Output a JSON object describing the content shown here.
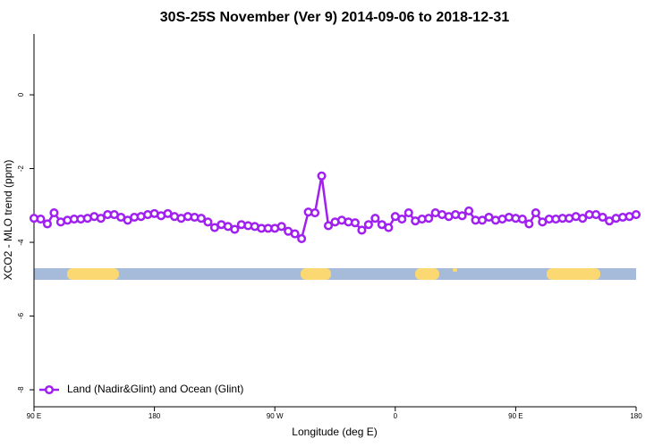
{
  "chart_data": {
    "type": "line",
    "title": "30S-25S November (Ver 9)   2014-09-06 to 2018-12-31",
    "x_label": "Longitude (deg E)",
    "y_label": "XCO2 - MLO trend (ppm)",
    "x": [
      90,
      95,
      100,
      105,
      110,
      115,
      120,
      125,
      130,
      135,
      140,
      145,
      150,
      155,
      160,
      165,
      170,
      175,
      180,
      185,
      190,
      195,
      200,
      205,
      210,
      215,
      220,
      225,
      230,
      235,
      240,
      245,
      250,
      255,
      260,
      265,
      270,
      275,
      280,
      285,
      290,
      295,
      300,
      305,
      310,
      315,
      320,
      325,
      330,
      335,
      340,
      345,
      350,
      355,
      360,
      365,
      370,
      375,
      380,
      385,
      390,
      395,
      400,
      405,
      410,
      415,
      420,
      425,
      430,
      435,
      440,
      445,
      450,
      455,
      460,
      465,
      470,
      475,
      480,
      485,
      490,
      495,
      500,
      505,
      510,
      515,
      520,
      525,
      530,
      535,
      540
    ],
    "series": [
      {
        "name": "Land (Nadir&Glint) and Ocean (Glint)",
        "color": "#a020f0",
        "values": [
          -3.35,
          -3.37,
          -3.5,
          -3.2,
          -3.45,
          -3.4,
          -3.37,
          -3.37,
          -3.35,
          -3.3,
          -3.35,
          -3.25,
          -3.25,
          -3.32,
          -3.4,
          -3.32,
          -3.3,
          -3.25,
          -3.22,
          -3.28,
          -3.22,
          -3.3,
          -3.35,
          -3.3,
          -3.32,
          -3.35,
          -3.45,
          -3.6,
          -3.52,
          -3.57,
          -3.65,
          -3.52,
          -3.55,
          -3.57,
          -3.62,
          -3.62,
          -3.62,
          -3.57,
          -3.7,
          -3.77,
          -3.9,
          -3.18,
          -3.2,
          -2.2,
          -3.55,
          -3.45,
          -3.4,
          -3.45,
          -3.47,
          -3.67,
          -3.52,
          -3.35,
          -3.52,
          -3.6,
          -3.3,
          -3.37,
          -3.2,
          -3.42,
          -3.37,
          -3.35,
          -3.2,
          -3.25,
          -3.3,
          -3.25,
          -3.28,
          -3.15,
          -3.4,
          -3.4,
          -3.32,
          -3.4,
          -3.37,
          -3.32,
          -3.35,
          -3.37,
          -3.5,
          -3.2,
          -3.45,
          -3.37,
          -3.37,
          -3.35,
          -3.35,
          -3.3,
          -3.35,
          -3.25,
          -3.25,
          -3.32,
          -3.42,
          -3.35,
          -3.32,
          -3.3,
          -3.25
        ]
      }
    ],
    "xlim": [
      90,
      540
    ],
    "xticks": [
      {
        "value": 90,
        "label": "90 E"
      },
      180,
      {
        "value": 270,
        "label": "90 W"
      },
      {
        "value": 360,
        "label": "0"
      },
      {
        "value": 450,
        "label": "90 E"
      },
      {
        "value": 540,
        "label": "180"
      }
    ],
    "ylim": [
      -8.46,
      1.65
    ],
    "yticks": [
      0,
      -2,
      -4,
      -6,
      -8
    ],
    "legend": "bottom-left"
  }
}
